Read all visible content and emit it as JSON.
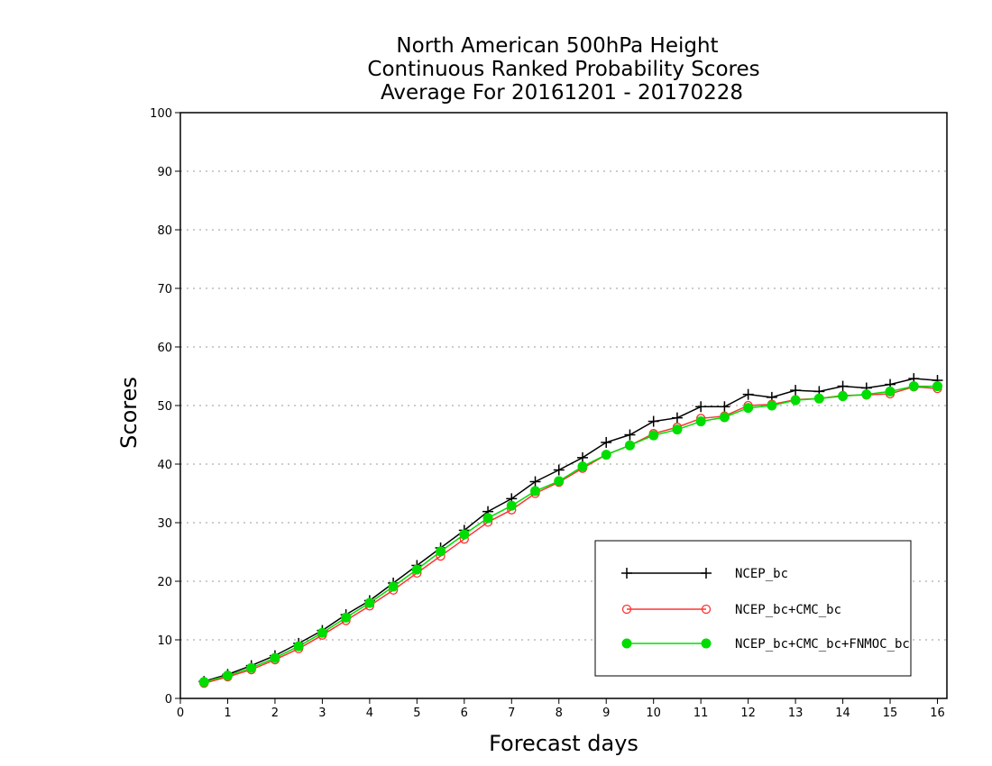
{
  "chart_data": {
    "type": "line",
    "title_lines": [
      "North American 500hPa Height",
      "Continuous Ranked Probability Scores",
      "Average For 20161201 - 20170228"
    ],
    "xlabel": "Forecast days",
    "ylabel": "Scores",
    "xlim": [
      0,
      16.2
    ],
    "ylim": [
      0,
      100
    ],
    "xticks": [
      "0",
      "1",
      "2",
      "3",
      "4",
      "5",
      "6",
      "7",
      "8",
      "9",
      "10",
      "11",
      "12",
      "13",
      "14",
      "15",
      "16"
    ],
    "yticks": [
      "0",
      "10",
      "20",
      "30",
      "40",
      "50",
      "60",
      "70",
      "80",
      "90",
      "100"
    ],
    "grid": "horizontal dotted",
    "legend_position": "lower-right",
    "x": [
      0.5,
      1,
      1.5,
      2,
      2.5,
      3,
      3.5,
      4,
      4.5,
      5,
      5.5,
      6,
      6.5,
      7,
      7.5,
      8,
      8.5,
      9,
      9.5,
      10,
      10.5,
      11,
      11.5,
      12,
      12.5,
      13,
      13.5,
      14,
      14.5,
      15,
      15.5,
      16
    ],
    "series": [
      {
        "name": "NCEP_bc",
        "color": "#000000",
        "marker": "plus",
        "values": [
          2.9,
          4.1,
          5.6,
          7.3,
          9.4,
          11.6,
          14.3,
          16.7,
          19.7,
          22.7,
          25.7,
          28.7,
          31.9,
          34.1,
          37.0,
          39.0,
          41.1,
          43.7,
          45.0,
          47.3,
          47.9,
          49.8,
          49.8,
          51.9,
          51.4,
          52.6,
          52.4,
          53.3,
          53.0,
          53.6,
          54.6,
          54.3
        ]
      },
      {
        "name": "NCEP_bc+CMC_bc",
        "color": "#ff3333",
        "marker": "open-circle",
        "values": [
          2.6,
          3.7,
          4.9,
          6.6,
          8.5,
          10.8,
          13.3,
          15.8,
          18.5,
          21.4,
          24.3,
          27.2,
          30.1,
          32.2,
          35.0,
          36.9,
          39.3,
          41.6,
          43.2,
          45.2,
          46.3,
          47.8,
          48.2,
          50.0,
          50.2,
          51.0,
          51.2,
          51.7,
          51.8,
          52.0,
          53.2,
          52.9
        ]
      },
      {
        "name": "NCEP_bc+CMC_bc+FNMOC_bc",
        "color": "#00dd00",
        "marker": "filled-circle",
        "values": [
          2.8,
          3.9,
          5.2,
          6.9,
          8.9,
          11.2,
          13.8,
          16.3,
          19.1,
          22.0,
          25.1,
          28.0,
          30.8,
          32.9,
          35.4,
          37.1,
          39.6,
          41.6,
          43.2,
          44.9,
          45.9,
          47.3,
          48.0,
          49.6,
          50.0,
          50.9,
          51.2,
          51.6,
          51.9,
          52.4,
          53.3,
          53.3
        ]
      }
    ]
  }
}
